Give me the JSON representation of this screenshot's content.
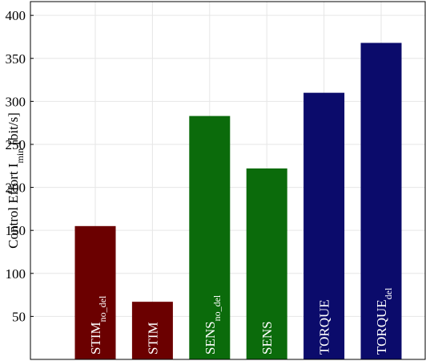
{
  "chart_data": {
    "type": "bar",
    "y_label": "Control Effort I",
    "y_label_subscript": "min",
    "y_label_unit": "[bit/s]",
    "categories": [
      "STIM",
      "STIM",
      "SENS",
      "SENS",
      "TORQUE",
      "TORQUE"
    ],
    "category_subscripts": [
      "no_del",
      null,
      "no_del",
      null,
      null,
      "del"
    ],
    "values": [
      155,
      67,
      283,
      222,
      310,
      368
    ],
    "colors": [
      "#6b0000",
      "#6b0000",
      "#0b6b0b",
      "#0b6b0b",
      "#0b0b6b",
      "#0b0b6b"
    ],
    "ylim": [
      0,
      416
    ],
    "yticks": [
      50,
      100,
      150,
      200,
      250,
      300,
      350,
      400
    ],
    "grid": true
  }
}
